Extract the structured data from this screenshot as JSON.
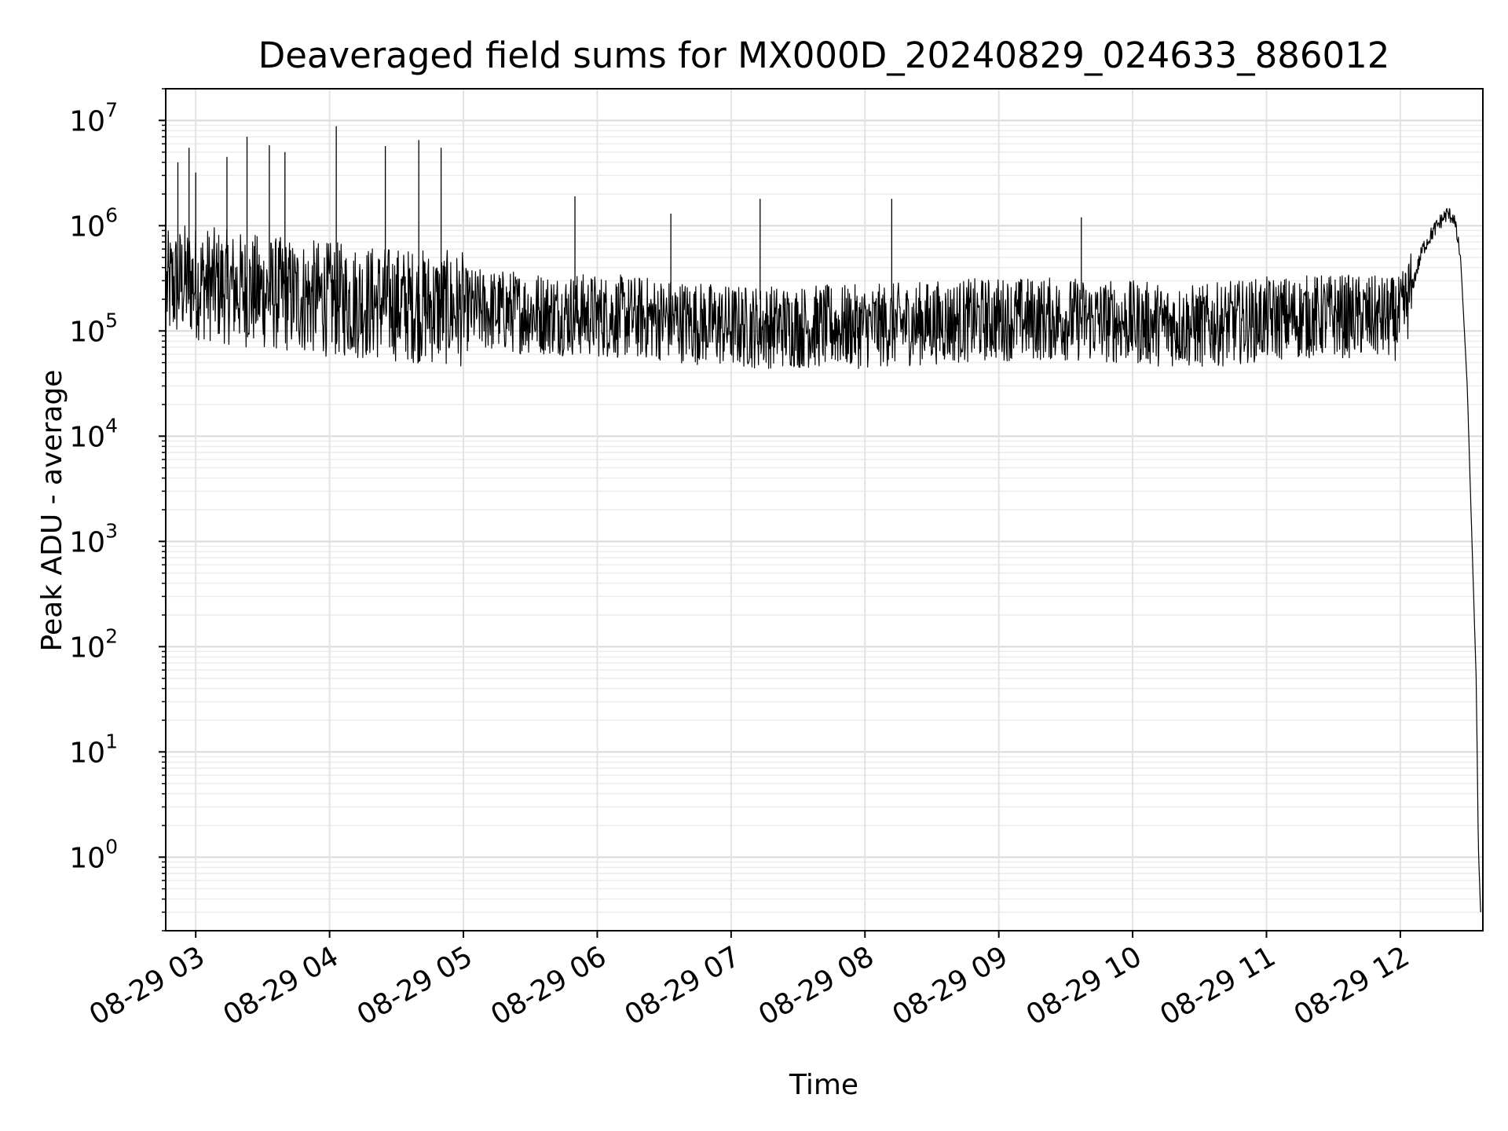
{
  "chart_data": {
    "type": "line",
    "title": "Deaveraged field sums for MX000D_20240829_024633_886012",
    "xlabel": "Time",
    "ylabel": "Peak ADU - average",
    "yscale": "log",
    "ylim": [
      0.2,
      20000000
    ],
    "xlim": [
      "2024-08-29 02:46:33",
      "2024-08-29 12:37:00"
    ],
    "grid": true,
    "line_color": "#000000",
    "x_ticks": [
      "08-29 03",
      "08-29 04",
      "08-29 05",
      "08-29 06",
      "08-29 07",
      "08-29 08",
      "08-29 09",
      "08-29 10",
      "08-29 11",
      "08-29 12"
    ],
    "y_ticks": [
      {
        "base": "10",
        "exp": "0",
        "value": 1
      },
      {
        "base": "10",
        "exp": "1",
        "value": 10
      },
      {
        "base": "10",
        "exp": "2",
        "value": 100
      },
      {
        "base": "10",
        "exp": "3",
        "value": 1000
      },
      {
        "base": "10",
        "exp": "4",
        "value": 10000
      },
      {
        "base": "10",
        "exp": "5",
        "value": 100000
      },
      {
        "base": "10",
        "exp": "6",
        "value": 1000000
      },
      {
        "base": "10",
        "exp": "7",
        "value": 10000000
      }
    ],
    "series": [
      {
        "x": [
          "2024-08-29 02:47",
          "2024-08-29 02:55",
          "2024-08-29 03:05",
          "2024-08-29 03:15",
          "2024-08-29 03:25",
          "2024-08-29 03:40",
          "2024-08-29 04:00",
          "2024-08-29 04:15",
          "2024-08-29 04:30",
          "2024-08-29 04:45",
          "2024-08-29 05:00",
          "2024-08-29 05:30",
          "2024-08-29 06:00",
          "2024-08-29 06:30",
          "2024-08-29 07:00",
          "2024-08-29 07:30",
          "2024-08-29 08:00",
          "2024-08-29 08:30",
          "2024-08-29 09:00",
          "2024-08-29 09:30",
          "2024-08-29 10:00",
          "2024-08-29 10:30",
          "2024-08-29 11:00",
          "2024-08-29 11:30",
          "2024-08-29 12:00",
          "2024-08-29 12:05",
          "2024-08-29 12:10",
          "2024-08-29 12:15",
          "2024-08-29 12:18",
          "2024-08-29 12:21",
          "2024-08-29 12:24",
          "2024-08-29 12:27",
          "2024-08-29 12:30",
          "2024-08-29 12:32",
          "2024-08-29 12:34",
          "2024-08-29 12:35",
          "2024-08-29 12:36"
        ],
        "y": [
          250000,
          300000,
          280000,
          260000,
          240000,
          220000,
          200000,
          190000,
          180000,
          170000,
          160000,
          150000,
          140000,
          130000,
          110000,
          110000,
          110000,
          120000,
          130000,
          130000,
          120000,
          110000,
          130000,
          140000,
          130000,
          250000,
          600000,
          900000,
          1100000,
          1300000,
          1200000,
          500000,
          30000,
          1200,
          50,
          1.2,
          0.3
        ]
      }
    ],
    "spikes": [
      {
        "x": "2024-08-29 02:52",
        "y": 4000000
      },
      {
        "x": "2024-08-29 02:57",
        "y": 5500000
      },
      {
        "x": "2024-08-29 03:00",
        "y": 3200000
      },
      {
        "x": "2024-08-29 03:14",
        "y": 4500000
      },
      {
        "x": "2024-08-29 03:23",
        "y": 7000000
      },
      {
        "x": "2024-08-29 03:33",
        "y": 5800000
      },
      {
        "x": "2024-08-29 03:40",
        "y": 5000000
      },
      {
        "x": "2024-08-29 04:03",
        "y": 8800000
      },
      {
        "x": "2024-08-29 04:25",
        "y": 5700000
      },
      {
        "x": "2024-08-29 04:40",
        "y": 6500000
      },
      {
        "x": "2024-08-29 04:50",
        "y": 5500000
      },
      {
        "x": "2024-08-29 05:50",
        "y": 1900000
      },
      {
        "x": "2024-08-29 06:33",
        "y": 1300000
      },
      {
        "x": "2024-08-29 07:13",
        "y": 1800000
      },
      {
        "x": "2024-08-29 08:12",
        "y": 1800000
      },
      {
        "x": "2024-08-29 09:37",
        "y": 1200000
      }
    ]
  }
}
